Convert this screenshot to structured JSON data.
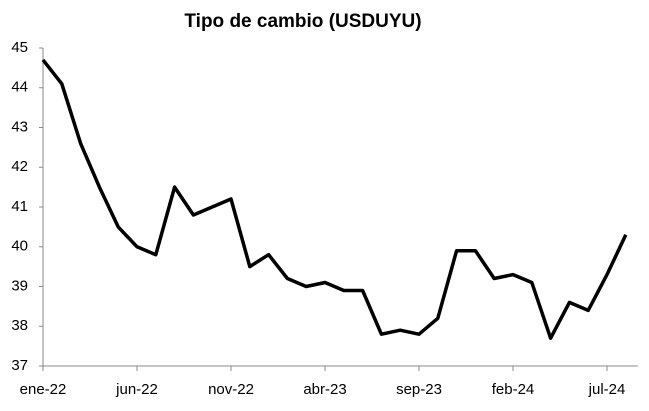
{
  "chart_data": {
    "type": "line",
    "title": "Tipo de cambio (USDUYU)",
    "x": [
      "2022-01",
      "2022-02",
      "2022-03",
      "2022-04",
      "2022-05",
      "2022-06",
      "2022-07",
      "2022-08",
      "2022-09",
      "2022-10",
      "2022-11",
      "2022-12",
      "2023-01",
      "2023-02",
      "2023-03",
      "2023-04",
      "2023-05",
      "2023-06",
      "2023-07",
      "2023-08",
      "2023-09",
      "2023-10",
      "2023-11",
      "2023-12",
      "2024-01",
      "2024-02",
      "2024-03",
      "2024-04",
      "2024-05",
      "2024-06",
      "2024-07",
      "2024-08"
    ],
    "series": [
      {
        "name": "USDUYU",
        "color": "#000000",
        "values": [
          44.7,
          44.1,
          42.6,
          41.5,
          40.5,
          40.0,
          39.8,
          41.5,
          40.8,
          41.0,
          41.2,
          39.5,
          39.8,
          39.2,
          39.0,
          39.1,
          38.9,
          38.9,
          37.8,
          37.9,
          37.8,
          38.2,
          39.9,
          39.9,
          39.2,
          39.3,
          39.1,
          37.7,
          38.6,
          38.4,
          39.3,
          40.3
        ]
      }
    ],
    "ylim": [
      37,
      45
    ],
    "yticks": [
      37,
      38,
      39,
      40,
      41,
      42,
      43,
      44,
      45
    ],
    "xticks": [
      {
        "value": "2022-01",
        "label": "ene-22"
      },
      {
        "value": "2022-06",
        "label": "jun-22"
      },
      {
        "value": "2022-11",
        "label": "nov-22"
      },
      {
        "value": "2023-04",
        "label": "abr-23"
      },
      {
        "value": "2023-09",
        "label": "sep-23"
      },
      {
        "value": "2024-02",
        "label": "feb-24"
      },
      {
        "value": "2024-07",
        "label": "jul-24"
      }
    ],
    "grid": false
  }
}
